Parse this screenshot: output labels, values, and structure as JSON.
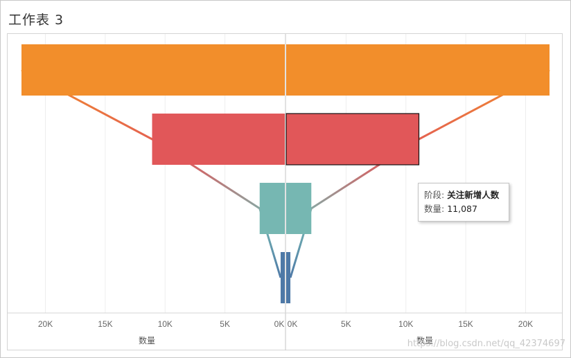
{
  "title": "工作表 3",
  "colors": {
    "orange": "#f28e2b",
    "red": "#e15759",
    "teal": "#76b7b2",
    "blue": "#4e79a7"
  },
  "chart_data": {
    "type": "bar",
    "orientation": "horizontal-mirrored-funnel",
    "categories": [
      "",
      "",
      "",
      ""
    ],
    "values": [
      22000,
      11087,
      2100,
      350
    ],
    "left_axis": {
      "label": "数量",
      "reversed": true,
      "range": [
        0,
        23000
      ],
      "ticks": [
        {
          "value": 20000,
          "label": "20K"
        },
        {
          "value": 15000,
          "label": "15K"
        },
        {
          "value": 10000,
          "label": "10K"
        },
        {
          "value": 5000,
          "label": "5K"
        },
        {
          "value": 0,
          "label": "0K"
        }
      ]
    },
    "right_axis": {
      "label": "数量",
      "range": [
        0,
        23000
      ],
      "ticks": [
        {
          "value": 0,
          "label": "0K"
        },
        {
          "value": 5000,
          "label": "5K"
        },
        {
          "value": 10000,
          "label": "10K"
        },
        {
          "value": 15000,
          "label": "15K"
        },
        {
          "value": 20000,
          "label": "20K"
        }
      ]
    },
    "grid": true,
    "legend": "none",
    "selected_index": 1
  },
  "tooltip": {
    "stage_label": "阶段:",
    "stage_value": "关注新增人数",
    "count_label": "数量:",
    "count_value": "11,087"
  },
  "watermark": "https://blog.csdn.net/qq_42374697"
}
